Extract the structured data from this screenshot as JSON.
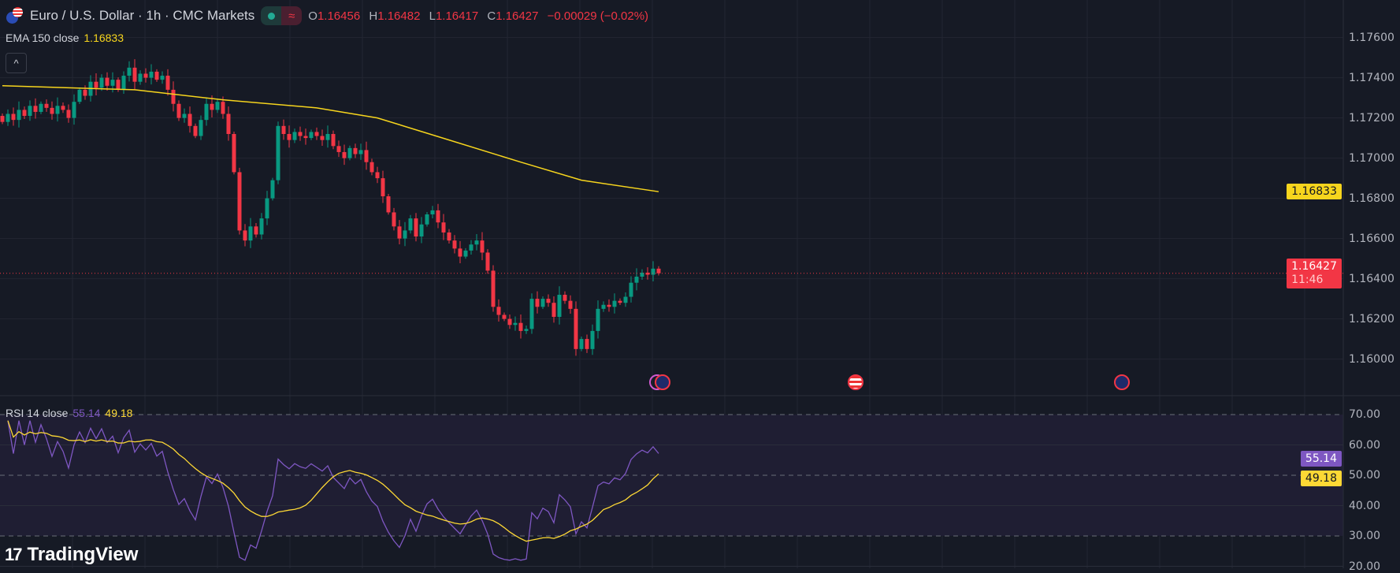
{
  "header": {
    "title": "Euro / U.S. Dollar · 1h · CMC Markets",
    "open_label": "O",
    "open": "1.16456",
    "high_label": "H",
    "high": "1.16482",
    "low_label": "L",
    "low": "1.16417",
    "close_label": "C",
    "close": "1.16427",
    "change": "−0.00029 (−0.02%)",
    "replay_icon": "≈"
  },
  "ema_legend": {
    "label": "EMA 150 close",
    "value": "1.16833"
  },
  "rsi_legend": {
    "label": "RSI 14 close",
    "rsi": "55.14",
    "ma": "49.18"
  },
  "price_axis": {
    "ticks": [
      "1.17600",
      "1.17400",
      "1.17200",
      "1.17000",
      "1.16800",
      "1.16600",
      "1.16400",
      "1.16200",
      "1.16000"
    ],
    "ema_tag": "1.16833",
    "price_tag": "1.16427",
    "countdown": "11:46"
  },
  "rsi_axis": {
    "ticks": [
      "70.00",
      "60.00",
      "50.00",
      "40.00",
      "30.00",
      "20.00"
    ],
    "rsi_tag": "55.14",
    "ma_tag": "49.18"
  },
  "logo": {
    "text": "TradingView",
    "mark": "17"
  },
  "colors": {
    "up": "#089981",
    "down": "#f23645",
    "ema": "#f7d51d",
    "rsi": "#7e57c2",
    "rsi_ma": "#fdd835"
  },
  "chart_data": {
    "type": "candlestick",
    "ylim": [
      1.159,
      1.1775
    ],
    "closes": [
      1.1718,
      1.1722,
      1.1719,
      1.1724,
      1.1721,
      1.1726,
      1.1723,
      1.1727,
      1.1725,
      1.1722,
      1.1726,
      1.1724,
      1.172,
      1.1728,
      1.1734,
      1.1731,
      1.1738,
      1.1735,
      1.174,
      1.1736,
      1.1739,
      1.1734,
      1.1741,
      1.1745,
      1.1738,
      1.1742,
      1.174,
      1.1743,
      1.1739,
      1.1741,
      1.1734,
      1.1727,
      1.172,
      1.1722,
      1.1716,
      1.1711,
      1.1719,
      1.1727,
      1.1724,
      1.1728,
      1.1722,
      1.1712,
      1.1693,
      1.1664,
      1.1659,
      1.1666,
      1.1662,
      1.167,
      1.168,
      1.1689,
      1.1716,
      1.1712,
      1.1709,
      1.1713,
      1.1711,
      1.171,
      1.1713,
      1.1711,
      1.1709,
      1.1712,
      1.1706,
      1.1703,
      1.17,
      1.1705,
      1.1702,
      1.1704,
      1.1698,
      1.1693,
      1.169,
      1.1681,
      1.1673,
      1.1666,
      1.166,
      1.1664,
      1.167,
      1.1661,
      1.1667,
      1.1672,
      1.1674,
      1.1668,
      1.1663,
      1.1659,
      1.1655,
      1.1651,
      1.1654,
      1.1657,
      1.1659,
      1.1653,
      1.1644,
      1.1626,
      1.1622,
      1.162,
      1.1617,
      1.1618,
      1.1614,
      1.1615,
      1.163,
      1.1626,
      1.163,
      1.1628,
      1.1621,
      1.1632,
      1.1629,
      1.1625,
      1.1605,
      1.161,
      1.1605,
      1.1614,
      1.1625,
      1.1627,
      1.1626,
      1.1629,
      1.1628,
      1.1631,
      1.1638,
      1.1641,
      1.1643,
      1.1642,
      1.1645,
      1.16427
    ],
    "ema150": [
      [
        0,
        1.1736
      ],
      [
        24,
        1.1734
      ],
      [
        40,
        1.1729
      ],
      [
        57,
        1.1725
      ],
      [
        68,
        1.172
      ],
      [
        81,
        1.1709
      ],
      [
        94,
        1.1698
      ],
      [
        105,
        1.1689
      ],
      [
        119,
        1.16833
      ]
    ],
    "rsi_range": [
      20,
      72
    ]
  }
}
